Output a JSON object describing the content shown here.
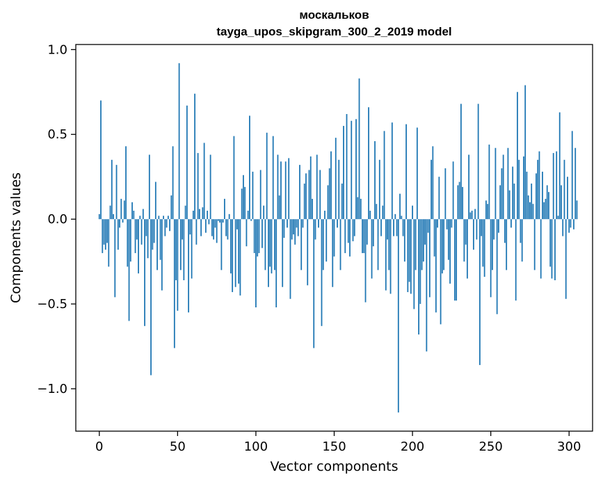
{
  "chart_data": {
    "type": "bar",
    "title": "москальков",
    "subtitle": "tayga_upos_skipgram_300_2_2019 model",
    "xlabel": "Vector components",
    "ylabel": "Components values",
    "xlim": [
      -15,
      315
    ],
    "ylim": [
      -1.25,
      1.03
    ],
    "bar_color": "#1f77b4",
    "grid": false,
    "x_ticks": [
      {
        "value": 0,
        "label": "0"
      },
      {
        "value": 50,
        "label": "50"
      },
      {
        "value": 100,
        "label": "100"
      },
      {
        "value": 150,
        "label": "150"
      },
      {
        "value": 200,
        "label": "200"
      },
      {
        "value": 250,
        "label": "250"
      },
      {
        "value": 300,
        "label": "300"
      }
    ],
    "y_ticks": [
      {
        "value": 1.0,
        "label": "1.0"
      },
      {
        "value": 0.5,
        "label": "0.5"
      },
      {
        "value": 0.0,
        "label": "0.0"
      },
      {
        "value": -0.5,
        "label": "−0.5"
      },
      {
        "value": -1.0,
        "label": "−1.0"
      }
    ],
    "values": [
      0.03,
      0.7,
      -0.2,
      -0.15,
      -0.18,
      -0.14,
      -0.28,
      0.08,
      0.35,
      0.03,
      -0.46,
      0.32,
      -0.18,
      -0.05,
      0.12,
      -0.02,
      0.11,
      0.43,
      -0.28,
      -0.6,
      -0.25,
      0.1,
      0.05,
      -0.2,
      -0.12,
      -0.32,
      0.02,
      -0.15,
      0.06,
      -0.63,
      -0.1,
      -0.23,
      0.38,
      -0.92,
      -0.18,
      -0.14,
      0.22,
      -0.3,
      0.02,
      -0.24,
      -0.42,
      0.02,
      -0.1,
      -0.05,
      0.02,
      -0.07,
      0.14,
      0.43,
      -0.76,
      -0.36,
      -0.54,
      0.92,
      -0.3,
      -0.12,
      -0.36,
      0.08,
      0.67,
      -0.55,
      -0.09,
      -0.35,
      0.05,
      0.74,
      -0.15,
      0.39,
      0.06,
      -0.1,
      0.07,
      0.45,
      -0.08,
      0.05,
      -0.03,
      0.38,
      -0.1,
      -0.12,
      -0.05,
      -0.14,
      -0.01,
      -0.02,
      -0.3,
      -0.02,
      0.12,
      -0.1,
      -0.12,
      0.03,
      -0.32,
      -0.43,
      0.49,
      -0.4,
      -0.06,
      -0.38,
      -0.45,
      0.18,
      0.26,
      0.19,
      -0.16,
      0.05,
      0.61,
      -0.01,
      0.28,
      -0.2,
      -0.52,
      -0.22,
      -0.2,
      0.29,
      -0.17,
      0.08,
      -0.3,
      0.51,
      -0.4,
      -0.28,
      -0.32,
      0.49,
      -0.3,
      -0.52,
      0.38,
      0.14,
      0.34,
      -0.4,
      -0.11,
      0.34,
      -0.05,
      0.36,
      -0.47,
      -0.12,
      -0.09,
      -0.15,
      -0.05,
      -0.1,
      0.32,
      -0.3,
      -0.05,
      0.21,
      0.27,
      -0.39,
      0.29,
      0.37,
      0.12,
      -0.76,
      -0.12,
      0.38,
      -0.05,
      0.29,
      -0.63,
      -0.3,
      0.05,
      -0.25,
      0.2,
      0.3,
      0.4,
      -0.4,
      -0.22,
      0.48,
      -0.05,
      0.35,
      -0.3,
      0.21,
      0.55,
      -0.2,
      0.62,
      -0.14,
      -0.22,
      0.58,
      -0.13,
      -0.1,
      0.59,
      0.13,
      0.83,
      0.12,
      -0.2,
      -0.2,
      -0.49,
      -0.15,
      0.66,
      0.05,
      -0.35,
      -0.16,
      0.46,
      0.09,
      -0.3,
      0.35,
      -0.1,
      0.08,
      0.52,
      -0.42,
      -0.12,
      -0.3,
      -0.44,
      0.57,
      -0.1,
      0.03,
      -0.1,
      -1.14,
      0.15,
      0.02,
      -0.1,
      -0.25,
      0.56,
      -0.43,
      -0.37,
      -0.44,
      0.08,
      -0.53,
      -0.3,
      0.54,
      -0.68,
      -0.5,
      -0.3,
      -0.25,
      -0.15,
      -0.78,
      -0.08,
      -0.46,
      0.35,
      0.43,
      -0.22,
      -0.55,
      -0.05,
      0.25,
      -0.62,
      -0.32,
      -0.3,
      0.3,
      -0.06,
      -0.24,
      -0.38,
      -0.05,
      0.34,
      -0.48,
      -0.48,
      0.2,
      0.22,
      0.68,
      0.19,
      -0.25,
      -0.15,
      -0.35,
      0.38,
      0.04,
      0.05,
      -0.18,
      0.06,
      -0.12,
      0.68,
      -0.86,
      -0.1,
      -0.28,
      -0.34,
      0.11,
      0.09,
      0.44,
      -0.46,
      -0.3,
      -0.12,
      0.42,
      -0.56,
      -0.08,
      0.2,
      0.3,
      0.38,
      -0.14,
      -0.3,
      0.42,
      0.17,
      -0.05,
      0.31,
      0.21,
      -0.48,
      0.75,
      0.35,
      -0.14,
      -0.25,
      0.37,
      0.79,
      0.28,
      0.14,
      0.1,
      0.21,
      0.09,
      -0.3,
      0.27,
      0.35,
      0.4,
      -0.35,
      0.28,
      0.1,
      0.12,
      0.2,
      0.16,
      -0.28,
      -0.35,
      0.39,
      -0.36,
      0.4,
      0.02,
      0.63,
      0.2,
      -0.1,
      0.35,
      -0.47,
      0.25,
      -0.08,
      -0.05,
      0.52,
      -0.06,
      0.42,
      0.11
    ]
  }
}
